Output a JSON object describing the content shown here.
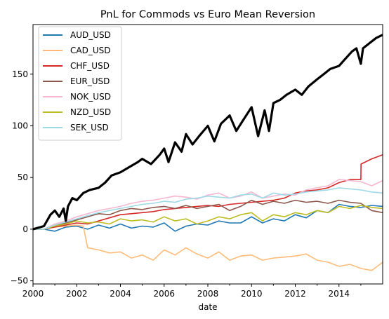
{
  "chart_data": {
    "type": "line",
    "title": "PnL for Commods vs Euro Mean Reversion",
    "xlabel": "date",
    "ylabel": "",
    "xlim": [
      2000.0,
      2016.0
    ],
    "ylim": [
      -53,
      198
    ],
    "x_ticks": [
      2000,
      2002,
      2004,
      2006,
      2008,
      2010,
      2012,
      2014
    ],
    "x_tick_labels": [
      "2000",
      "2002",
      "2004",
      "2006",
      "2008",
      "2010",
      "2012",
      "2014"
    ],
    "y_ticks": [
      -50,
      0,
      50,
      100,
      150
    ],
    "y_tick_labels": [
      "−50",
      "0",
      "50",
      "100",
      "150"
    ],
    "grid": false,
    "legend_position": "top-left",
    "series": [
      {
        "name": "AUD_USD",
        "color": "#1f77b4",
        "x": [
          2000,
          2000.5,
          2001,
          2001.5,
          2002,
          2002.5,
          2003,
          2003.5,
          2004,
          2004.5,
          2005,
          2005.5,
          2006,
          2006.5,
          2007,
          2007.5,
          2008,
          2008.5,
          2009,
          2009.5,
          2010,
          2010.5,
          2011,
          2011.5,
          2012,
          2012.5,
          2013,
          2013.5,
          2014,
          2014.5,
          2015,
          2015.5,
          2016
        ],
        "y": [
          0,
          0,
          -2,
          2,
          3,
          0,
          4,
          1,
          5,
          1,
          3,
          2,
          6,
          -2,
          3,
          5,
          4,
          8,
          6,
          6,
          12,
          6,
          10,
          8,
          14,
          11,
          18,
          16,
          24,
          22,
          21,
          23,
          22
        ]
      },
      {
        "name": "CAD_USD",
        "color": "#ffbb78",
        "x": [
          2000,
          2000.5,
          2001,
          2001.5,
          2002,
          2002.3,
          2002.5,
          2003,
          2003.5,
          2004,
          2004.5,
          2005,
          2005.5,
          2006,
          2006.5,
          2007,
          2007.5,
          2008,
          2008.5,
          2009,
          2009.5,
          2010,
          2010.5,
          2011,
          2011.5,
          2012,
          2012.5,
          2013,
          2013.5,
          2014,
          2014.5,
          2015,
          2015.5,
          2016
        ],
        "y": [
          0,
          0,
          2,
          3,
          4,
          3,
          -18,
          -20,
          -23,
          -22,
          -28,
          -25,
          -30,
          -20,
          -25,
          -18,
          -24,
          -28,
          -22,
          -30,
          -26,
          -25,
          -30,
          -28,
          -27,
          -26,
          -24,
          -30,
          -32,
          -36,
          -34,
          -38,
          -40,
          -32
        ]
      },
      {
        "name": "CHF_USD",
        "color": "#d62728",
        "x": [
          2000,
          2000.5,
          2001,
          2001.5,
          2002,
          2002.5,
          2003,
          2003.5,
          2004,
          2004.5,
          2005,
          2005.5,
          2006,
          2006.5,
          2007,
          2007.5,
          2008,
          2008.5,
          2009,
          2009.5,
          2010,
          2010.5,
          2011,
          2011.5,
          2012,
          2012.5,
          2013,
          2013.5,
          2014,
          2014.5,
          2015,
          2015.01,
          2015.5,
          2016
        ],
        "y": [
          0,
          0,
          2,
          4,
          6,
          5,
          8,
          11,
          14,
          15,
          16,
          17,
          19,
          20,
          21,
          22,
          23,
          22,
          24,
          25,
          26,
          27,
          28,
          30,
          35,
          37,
          38,
          40,
          45,
          48,
          48,
          63,
          68,
          72
        ]
      },
      {
        "name": "EUR_USD",
        "color": "#8c564b",
        "x": [
          2000,
          2000.5,
          2001,
          2001.5,
          2002,
          2002.5,
          2003,
          2003.5,
          2004,
          2004.5,
          2005,
          2005.5,
          2006,
          2006.5,
          2007,
          2007.5,
          2008,
          2008.5,
          2009,
          2009.5,
          2010,
          2010.5,
          2011,
          2011.5,
          2012,
          2012.5,
          2013,
          2013.5,
          2014,
          2014.5,
          2015,
          2015.5,
          2016
        ],
        "y": [
          0,
          0,
          3,
          6,
          9,
          12,
          15,
          14,
          18,
          20,
          19,
          21,
          22,
          20,
          23,
          20,
          22,
          24,
          18,
          22,
          28,
          24,
          27,
          25,
          28,
          26,
          27,
          25,
          28,
          26,
          25,
          18,
          16
        ]
      },
      {
        "name": "NOK_USD",
        "color": "#f7b6d2",
        "x": [
          2000,
          2000.5,
          2001,
          2001.5,
          2002,
          2002.5,
          2003,
          2003.5,
          2004,
          2004.5,
          2005,
          2005.5,
          2006,
          2006.5,
          2007,
          2007.5,
          2008,
          2008.5,
          2009,
          2009.5,
          2010,
          2010.5,
          2011,
          2011.5,
          2012,
          2012.5,
          2013,
          2013.5,
          2014,
          2014.5,
          2015,
          2015.5,
          2016
        ],
        "y": [
          0,
          0,
          5,
          8,
          12,
          15,
          18,
          20,
          22,
          25,
          27,
          28,
          30,
          32,
          31,
          29,
          33,
          35,
          30,
          32,
          36,
          30,
          32,
          34,
          33,
          38,
          40,
          42,
          48,
          47,
          46,
          42,
          47
        ]
      },
      {
        "name": "NZD_USD",
        "color": "#bcbd22",
        "x": [
          2000,
          2000.5,
          2001,
          2001.5,
          2002,
          2002.5,
          2003,
          2003.5,
          2004,
          2004.5,
          2005,
          2005.5,
          2006,
          2006.5,
          2007,
          2007.5,
          2008,
          2008.5,
          2009,
          2009.5,
          2010,
          2010.5,
          2011,
          2011.5,
          2012,
          2012.5,
          2013,
          2013.5,
          2014,
          2014.5,
          2015,
          2015.5,
          2016
        ],
        "y": [
          0,
          0,
          3,
          5,
          8,
          6,
          7,
          5,
          10,
          8,
          9,
          7,
          12,
          8,
          10,
          5,
          8,
          12,
          10,
          14,
          16,
          8,
          14,
          12,
          16,
          14,
          18,
          16,
          22,
          20,
          23,
          21,
          20
        ]
      },
      {
        "name": "SEK_USD",
        "color": "#9edae5",
        "x": [
          2000,
          2000.5,
          2001,
          2001.5,
          2002,
          2002.5,
          2003,
          2003.5,
          2004,
          2004.5,
          2005,
          2005.5,
          2006,
          2006.5,
          2007,
          2007.5,
          2008,
          2008.5,
          2009,
          2009.5,
          2010,
          2010.5,
          2011,
          2011.5,
          2012,
          2012.5,
          2013,
          2013.5,
          2014,
          2014.5,
          2015,
          2015.5,
          2016
        ],
        "y": [
          0,
          0,
          4,
          7,
          10,
          13,
          16,
          18,
          20,
          22,
          24,
          25,
          27,
          26,
          29,
          30,
          32,
          31,
          30,
          33,
          34,
          30,
          35,
          33,
          34,
          36,
          37,
          38,
          40,
          39,
          38,
          36,
          35
        ]
      },
      {
        "name": "",
        "color": "#000000",
        "x": [
          2000,
          2000.5,
          2000.8,
          2001,
          2001.2,
          2001.4,
          2001.5,
          2001.6,
          2001.8,
          2002,
          2002.3,
          2002.6,
          2003,
          2003.3,
          2003.6,
          2004,
          2004.4,
          2004.8,
          2005,
          2005.4,
          2005.8,
          2006,
          2006.2,
          2006.5,
          2006.8,
          2007,
          2007.3,
          2007.6,
          2008,
          2008.3,
          2008.6,
          2009,
          2009.3,
          2009.6,
          2010,
          2010.3,
          2010.6,
          2010.8,
          2011,
          2011.3,
          2011.6,
          2012,
          2012.3,
          2012.6,
          2013,
          2013.3,
          2013.6,
          2014,
          2014.3,
          2014.6,
          2014.8,
          2015,
          2015.1,
          2015.4,
          2015.7,
          2016
        ],
        "y": [
          0,
          3,
          14,
          18,
          12,
          20,
          8,
          22,
          30,
          28,
          35,
          38,
          40,
          45,
          52,
          55,
          60,
          65,
          68,
          63,
          72,
          78,
          65,
          84,
          75,
          92,
          82,
          90,
          100,
          85,
          102,
          110,
          95,
          105,
          118,
          90,
          115,
          95,
          122,
          125,
          130,
          135,
          130,
          138,
          145,
          150,
          155,
          158,
          165,
          172,
          175,
          160,
          175,
          180,
          185,
          188
        ]
      }
    ]
  }
}
